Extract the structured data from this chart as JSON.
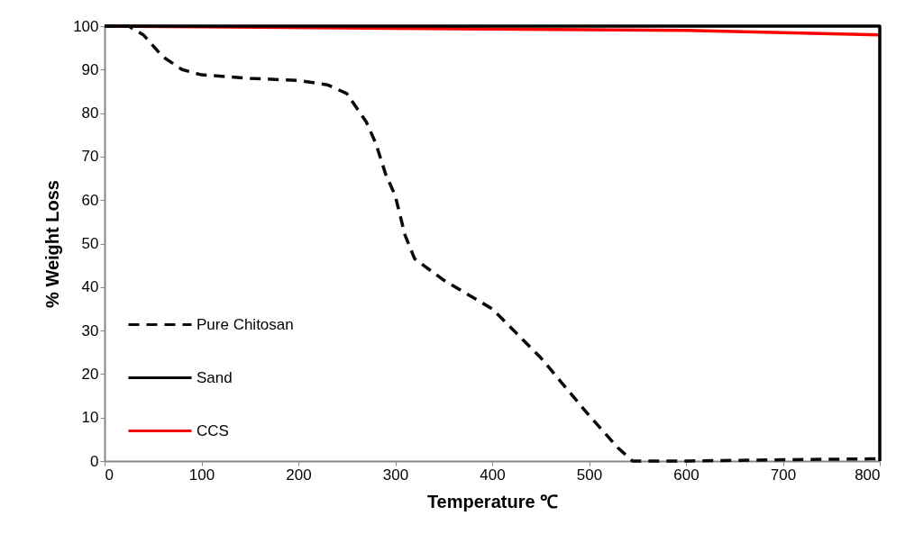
{
  "chart_data": {
    "type": "line",
    "xlabel": "Temperature ℃",
    "ylabel": "% Weight Loss",
    "xlim": [
      0,
      800
    ],
    "ylim": [
      0,
      100
    ],
    "xticks": [
      0,
      100,
      200,
      300,
      400,
      500,
      600,
      700,
      800
    ],
    "yticks": [
      0,
      10,
      20,
      30,
      40,
      50,
      60,
      70,
      80,
      90,
      100
    ],
    "grid": false,
    "legend": "bottom left",
    "marker": "none",
    "series": [
      {
        "name": "Pure Chitosan",
        "color": "#0a0a0a",
        "line_style": "dashed",
        "x": [
          0,
          25,
          40,
          60,
          80,
          100,
          150,
          200,
          230,
          250,
          270,
          280,
          290,
          300,
          310,
          320,
          350,
          400,
          450,
          500,
          530,
          545,
          600,
          700,
          790,
          800
        ],
        "values": [
          100,
          100,
          98,
          93,
          90,
          88.8,
          88,
          87.5,
          86.5,
          84.5,
          78,
          73,
          66,
          61,
          52,
          46.5,
          41.6,
          35,
          23.8,
          10.5,
          3,
          0,
          0,
          0.3,
          0.5,
          0.5
        ]
      },
      {
        "name": "Sand",
        "color": "#000000",
        "line_style": "solid",
        "x": [
          0,
          50,
          100,
          150,
          200,
          250,
          300,
          350,
          400,
          450,
          500,
          550,
          600,
          650,
          700,
          750,
          800,
          800
        ],
        "values": [
          100,
          100,
          100,
          100,
          100,
          100,
          100,
          100,
          100,
          100,
          100,
          100,
          100,
          100,
          100,
          100,
          100,
          0
        ]
      },
      {
        "name": "CCS",
        "color": "#ff0000",
        "line_style": "solid",
        "x": [
          0,
          300,
          600,
          800
        ],
        "values": [
          100,
          99.5,
          99,
          98
        ]
      }
    ]
  }
}
